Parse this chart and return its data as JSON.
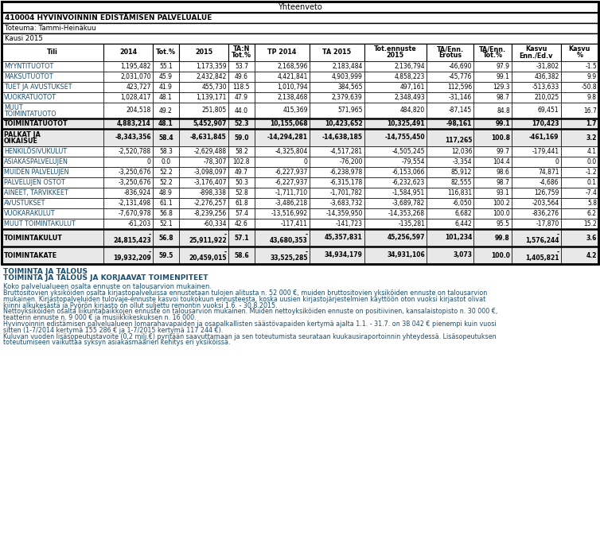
{
  "title": "Yhteenveto",
  "header1": "410004 HYVINVOINNIN EDISTÄMISEN PALVELUALUE",
  "header2": "Toteuma: Tammi-Heinäkuu",
  "header3": "Kausi 2015",
  "col_headers": [
    "Tili",
    "2014",
    "Tot.%",
    "2015",
    "TA:N\nTot.%",
    "TP 2014",
    "TA 2015",
    "Tot.ennuste\n2015",
    "TA/Enn.\nErotus",
    "TA/Enn.\nTot.%",
    "Kasvu\nEnn./Ed.v",
    "Kasvu\n%"
  ],
  "col_widths_raw": [
    108,
    52,
    28,
    52,
    28,
    58,
    58,
    66,
    50,
    40,
    52,
    40
  ],
  "row_text_color": "#1a4f6e",
  "bold_text_color": "#000000",
  "bold_bg": "#e8e8e8",
  "white": "#ffffff",
  "border": "#000000",
  "footer_color": "#1a4f6e",
  "rows_data": [
    [
      "MYYNTITUOTOT",
      false,
      "1,195,482",
      "55.1",
      "1,173,359",
      "53.7",
      "2,168,596",
      "2,183,484",
      "2,136,794",
      "-46,690",
      "97.9",
      "-31,802",
      "-1.5"
    ],
    [
      "MAKSUTUOTOT",
      false,
      "2,031,070",
      "45.9",
      "2,432,842",
      "49.6",
      "4,421,841",
      "4,903,999",
      "4,858,223",
      "-45,776",
      "99.1",
      "436,382",
      "9.9"
    ],
    [
      "TUET JA AVUSTUKSET",
      false,
      "423,727",
      "41.9",
      "455,730",
      "118.5",
      "1,010,794",
      "384,565",
      "497,161",
      "112,596",
      "129.3",
      "-513,633",
      "-50.8"
    ],
    [
      "VUOKRATUOTOT",
      false,
      "1,028,417",
      "48.1",
      "1,139,171",
      "47.9",
      "2,138,468",
      "2,379,639",
      "2,348,493",
      "-31,146",
      "98.7",
      "210,025",
      "9.8"
    ],
    [
      "MUUT\nTOIMINTATUOTO",
      false,
      "204,518",
      "49.2",
      "251,805",
      "44.0",
      "415,369",
      "571,965",
      "484,820",
      "-87,145",
      "84.8",
      "69,451",
      "16.7"
    ],
    [
      "TOIMINTATUOTOT",
      true,
      "4,883,214",
      "48.1",
      "5,452,907",
      "52.3",
      "10,155,068",
      "10,423,652",
      "10,325,491",
      "-98,161",
      "99.1",
      "170,423",
      "1.7"
    ],
    [
      "PALKAT JA\nOIKAISUE",
      true,
      "-8,343,356",
      "58.4",
      "-8,631,845",
      "59.0",
      "-14,294,281",
      "-14,638,185",
      "-14,755,450",
      "\n117,265",
      "100.8",
      "-461,169",
      "3.2"
    ],
    [
      "HENKILÖSIVUKULUT",
      false,
      "-2,520,788",
      "58.3",
      "-2,629,488",
      "58.2",
      "-4,325,804",
      "-4,517,281",
      "-4,505,245",
      "12,036",
      "99.7",
      "-179,441",
      "4.1"
    ],
    [
      "ASIAKASPALVELUJEN",
      false,
      "0",
      "0.0",
      "-78,307",
      "102.8",
      "0",
      "-76,200",
      "-79,554",
      "-3,354",
      "104.4",
      "0",
      "0.0"
    ],
    [
      "MUIDEN PALVELUJEN",
      false,
      "-3,250,676",
      "52.2",
      "-3,098,097",
      "49.7",
      "-6,227,937",
      "-6,238,978",
      "-6,153,066",
      "85,912",
      "98.6",
      "74,871",
      "-1.2"
    ],
    [
      "PALVELUJEN OSTOT",
      false,
      "-3,250,676",
      "52.2",
      "-3,176,407",
      "50.3",
      "-6,227,937",
      "-6,315,178",
      "-6,232,623",
      "82,555",
      "98.7",
      "-4,686",
      "0.1"
    ],
    [
      "AINEET, TARVIKKEET",
      false,
      "-836,924",
      "48.9",
      "-898,338",
      "52.8",
      "-1,711,710",
      "-1,701,782",
      "-1,584,951",
      "116,831",
      "93.1",
      "126,759",
      "-7.4"
    ],
    [
      "AVUSTUKSET",
      false,
      "-2,131,498",
      "61.1",
      "-2,276,257",
      "61.8",
      "-3,486,218",
      "-3,683,732",
      "-3,689,782",
      "-6,050",
      "100.2",
      "-203,564",
      "5.8"
    ],
    [
      "VUOKARAKULUT",
      false,
      "-7,670,978",
      "56.8",
      "-8,239,256",
      "57.4",
      "-13,516,992",
      "-14,359,950",
      "-14,353,268",
      "6,682",
      "100.0",
      "-836,276",
      "6.2"
    ],
    [
      "MUUT TOIMINTAKULUT",
      false,
      "-61,203",
      "52.1",
      "-60,334",
      "42.6",
      "-117,411",
      "-141,723",
      "-135,281",
      "6,442",
      "95.5",
      "-17,870",
      "15.2"
    ],
    [
      "TOIMINTAKULUT",
      true,
      "-\n24,815,423",
      "56.8",
      "-\n25,911,922",
      "57.1",
      "-\n43,680,353",
      "45,357,831",
      "45,256,597",
      "101,234",
      "99.8",
      "-\n1,576,244",
      "3.6"
    ],
    [
      "TOIMINTAKATE",
      true,
      "-\n19,932,209",
      "59.5",
      "-\n20,459,015",
      "58.6",
      "-\n33,525,285",
      "34,934,179",
      "34,931,106",
      "3,073",
      "100.0",
      "-\n1,405,821",
      "4.2"
    ]
  ],
  "footer_lines": [
    [
      "TOIMINTA JA TALOUS",
      true,
      6.5
    ],
    [
      "TOIMINTA JA TALOUS JA KORJAAVAT TOIMENPITEET",
      true,
      6.5
    ],
    [
      "Koko palvelualueen osalta ennuste on talousarvion mukainen.",
      false,
      6.0
    ],
    [
      "Bruttositovien yksiköiden osalta kirjastopalveluissa ennustetaan tulojen alitusta n. 52 000 €, muiden bruttositovien yksiköiden ennuste on talousarvion",
      false,
      5.8
    ],
    [
      "mukainen. Kirjastopalveluiden tulovaje-ennuste kasvoi toukokuun ennusteesta, koska uusien kirjastojärjestelmien käyttöön oton vuoksi kirjastot olivat",
      false,
      5.8
    ],
    [
      "kiinni alkukesästä ja Pyörön kirjasto on ollut suljettu remontin vuoksi 1.6. - 30.8.2015.",
      false,
      5.8
    ],
    [
      "Nettoyksiköiden osalta liikuntapaikkojen ennuste on talousarvion mukainen. Muiden nettoyksiköiden ennuste on positiivinen, kansalaistopisto n. 30 000 €,",
      false,
      5.8
    ],
    [
      "teatterin ennuste n. 9 000 € ja musiikkikeskuksen n. 16 000.",
      false,
      5.8
    ],
    [
      "Hyvinvoinnin edistämisen palvelualueen lomarahavapaiden ja osapalkallisten säästövapaiden kertymä ajalta 1.1. - 31.7. on 38 042 € pienempi kuin vuosi",
      false,
      5.8
    ],
    [
      "sitten (1-7/2014 kertymä 155 286 € ja 1-7/2015 kertymä 117 244 €).",
      false,
      5.8
    ],
    [
      "Kuluvan vuoden lisäsopeutustavoite (0,2 milj.€) pyritään saavuttamaan ja sen toteutumista seurataan kuukausiraportoinnin yhteydessä. Lisäsopeutuksen",
      false,
      5.8
    ],
    [
      "toteutumiseen vaikuttaa syksyn asiakasmäärien kehitys eri yksiköissä.",
      false,
      5.8
    ]
  ]
}
